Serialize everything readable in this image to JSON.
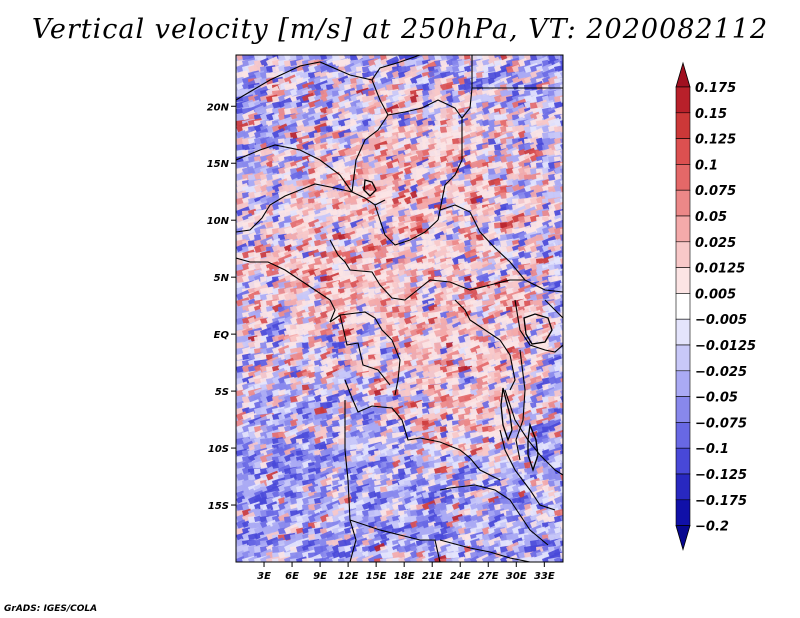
{
  "title": "Vertical velocity [m/s] at 250hPa, VT: 2020082112",
  "credit": "GrADS: IGES/COLA",
  "map": {
    "field": "vertical velocity",
    "level": "250hPa",
    "lon_range": [
      0,
      35
    ],
    "lat_range": [
      -20,
      24.5
    ],
    "lat_labels": [
      {
        "value": 20,
        "label": "20N"
      },
      {
        "value": 15,
        "label": "15N"
      },
      {
        "value": 10,
        "label": "10N"
      },
      {
        "value": 5,
        "label": "5N"
      },
      {
        "value": 0,
        "label": "EQ"
      },
      {
        "value": -5,
        "label": "5S"
      },
      {
        "value": -10,
        "label": "10S"
      },
      {
        "value": -15,
        "label": "15S"
      }
    ],
    "lon_labels": [
      {
        "value": 3,
        "label": "3E"
      },
      {
        "value": 6,
        "label": "6E"
      },
      {
        "value": 9,
        "label": "9E"
      },
      {
        "value": 12,
        "label": "12E"
      },
      {
        "value": 15,
        "label": "15E"
      },
      {
        "value": 18,
        "label": "18E"
      },
      {
        "value": 21,
        "label": "21E"
      },
      {
        "value": 24,
        "label": "24E"
      },
      {
        "value": 27,
        "label": "27E"
      },
      {
        "value": 30,
        "label": "30E"
      },
      {
        "value": 33,
        "label": "33E"
      }
    ]
  },
  "colorbar": {
    "labels": [
      "0.175",
      "0.15",
      "0.125",
      "0.1",
      "0.075",
      "0.05",
      "0.025",
      "0.0125",
      "0.005",
      "-0.005",
      "-0.0125",
      "-0.025",
      "-0.05",
      "-0.075",
      "-0.1",
      "-0.125",
      "-0.175",
      "-0.2"
    ],
    "colors": [
      "#a01020",
      "#b8202a",
      "#cc3838",
      "#dc5050",
      "#e46868",
      "#ec8888",
      "#f4aaaa",
      "#f8c8c8",
      "#fce4e4",
      "#ffffff",
      "#e4e4fc",
      "#c8c8f8",
      "#aaaaf4",
      "#8888ec",
      "#6868e4",
      "#4848d8",
      "#2828c0",
      "#1010a8",
      "#080890"
    ]
  }
}
